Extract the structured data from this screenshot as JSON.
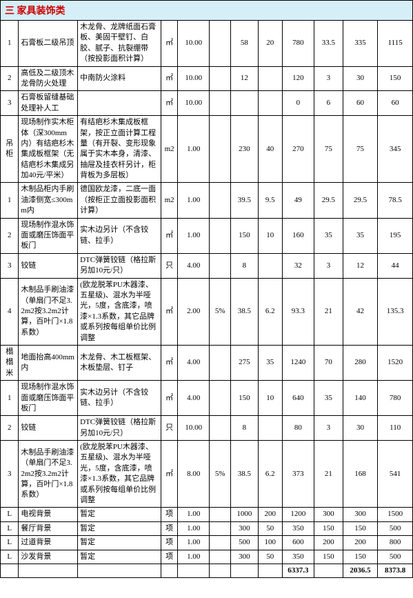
{
  "header": {
    "title": "三  家具装饰类",
    "bg_color": "#d6eef7",
    "color": "#cc0000"
  },
  "rows": [
    {
      "c0": "1",
      "c1": "石膏板二级吊顶",
      "c2": "木龙骨、龙牌纸面石膏板、美固干壁钉、白胶、腻子、抗裂绷带（按投影面积计算）",
      "c3": "㎡",
      "c4": "10.00",
      "c5": "",
      "c6": "58",
      "c7": "20",
      "c8": "780",
      "c9": "33.5",
      "c10": "335",
      "c11": "1115"
    },
    {
      "c0": "2",
      "c1": "高低及二级顶木龙骨防火处理",
      "c2": "中南防火涂料",
      "c3": "㎡",
      "c4": "10.00",
      "c5": "",
      "c6": "12",
      "c7": "",
      "c8": "120",
      "c9": "3",
      "c10": "30",
      "c11": "150"
    },
    {
      "c0": "3",
      "c1": "石膏板留缝基础处理补人工",
      "c2": "",
      "c3": "㎡",
      "c4": "10.00",
      "c5": "",
      "c6": "",
      "c7": "",
      "c8": "0",
      "c9": "6",
      "c10": "60",
      "c11": "60"
    },
    {
      "c0": "吊柜",
      "c1": "现场制作实木柜体（深300mm内）有结疤杉木集成板框架（无结疤杉木集成另加40元/平米）",
      "c2": "有结疤杉木集成板框架，按正立面计算工程量（有开裂、变形现象属于实木本身，清漆、抽屉及挂衣杆另计，柜背板为多层板）",
      "c3": "m2",
      "c4": "1.00",
      "c5": "",
      "c6": "230",
      "c7": "40",
      "c8": "270",
      "c9": "75",
      "c10": "75",
      "c11": "345"
    },
    {
      "c0": "1",
      "c1": "木制品柜内手刷油漆侧宽≤300mm内",
      "c2": "德国欧龙漆，二底一面（按柜正立面投影面积计算）",
      "c3": "m2",
      "c4": "1.00",
      "c5": "",
      "c6": "39.5",
      "c7": "9.5",
      "c8": "49",
      "c9": "29.5",
      "c10": "29.5",
      "c11": "78.5"
    },
    {
      "c0": "2",
      "c1": "现场制作混水饰面或磨压饰面平板门",
      "c2": "实木边另计（不含铰链、拉手）",
      "c3": "㎡",
      "c4": "1.00",
      "c5": "",
      "c6": "150",
      "c7": "10",
      "c8": "160",
      "c9": "35",
      "c10": "35",
      "c11": "195"
    },
    {
      "c0": "3",
      "c1": "铰链",
      "c2": "DTC弹簧铰链（格拉斯另加10元/只）",
      "c3": "只",
      "c4": "4.00",
      "c5": "",
      "c6": "8",
      "c7": "",
      "c8": "32",
      "c9": "3",
      "c10": "12",
      "c11": "44"
    },
    {
      "c0": "4",
      "c1": "木制品手刷油漆（单扇门不足3.2m2按3.2m2计算，百叶门×1.8系数）",
      "c2": "(欧龙脱苯PU木器漆、五星级)、混水为半哑光，5度，含底漆，喷漆×1.3系数，其它品牌或系列按每组单价比例调整",
      "c3": "㎡",
      "c4": "2.00",
      "c5": "5%",
      "c6": "38.5",
      "c7": "6.2",
      "c8": "93.3",
      "c9": "21",
      "c10": "42",
      "c11": "135.3"
    },
    {
      "c0": "榻榻米",
      "c1": "地面抬高400mm内",
      "c2": "木龙骨、木工板框架、木板垫层、钉子",
      "c3": "㎡",
      "c4": "4.00",
      "c5": "",
      "c6": "275",
      "c7": "35",
      "c8": "1240",
      "c9": "70",
      "c10": "280",
      "c11": "1520"
    },
    {
      "c0": "1",
      "c1": "现场制作混水饰面或磨压饰面平板门",
      "c2": "实木边另计（不含铰链、拉手）",
      "c3": "㎡",
      "c4": "4.00",
      "c5": "",
      "c6": "150",
      "c7": "10",
      "c8": "640",
      "c9": "35",
      "c10": "140",
      "c11": "780"
    },
    {
      "c0": "2",
      "c1": "铰链",
      "c2": "DTC弹簧铰链（格拉斯另加10元/只）",
      "c3": "只",
      "c4": "10.00",
      "c5": "",
      "c6": "8",
      "c7": "",
      "c8": "80",
      "c9": "3",
      "c10": "30",
      "c11": "110"
    },
    {
      "c0": "3",
      "c1": "木制品手刷油漆（单扇门不足3.2m2按3.2m2计算，百叶门×1.8系数）",
      "c2": "(欧龙脱苯PU木器漆、五星级)、混水为半哑光，5度，含底漆，喷漆×1.3系数，其它品牌或系列按每组单价比例调整",
      "c3": "㎡",
      "c4": "8.00",
      "c5": "5%",
      "c6": "38.5",
      "c7": "6.2",
      "c8": "373",
      "c9": "21",
      "c10": "168",
      "c11": "541"
    },
    {
      "c0": "L",
      "c1": "电视背景",
      "c2": "暂定",
      "c3": "项",
      "c4": "1.00",
      "c5": "",
      "c6": "1000",
      "c7": "200",
      "c8": "1200",
      "c9": "300",
      "c10": "300",
      "c11": "1500"
    },
    {
      "c0": "L",
      "c1": "餐厅背景",
      "c2": "暂定",
      "c3": "项",
      "c4": "1.00",
      "c5": "",
      "c6": "300",
      "c7": "50",
      "c8": "350",
      "c9": "150",
      "c10": "150",
      "c11": "500"
    },
    {
      "c0": "L",
      "c1": "过道背景",
      "c2": "暂定",
      "c3": "项",
      "c4": "1.00",
      "c5": "",
      "c6": "500",
      "c7": "100",
      "c8": "600",
      "c9": "200",
      "c10": "200",
      "c11": "800"
    },
    {
      "c0": "L",
      "c1": "沙发背景",
      "c2": "暂定",
      "c3": "项",
      "c4": "1.00",
      "c5": "",
      "c6": "300",
      "c7": "50",
      "c8": "350",
      "c9": "150",
      "c10": "150",
      "c11": "500"
    }
  ],
  "totals": {
    "c8": "6337.3",
    "c10": "2036.5",
    "c11": "8373.8"
  }
}
